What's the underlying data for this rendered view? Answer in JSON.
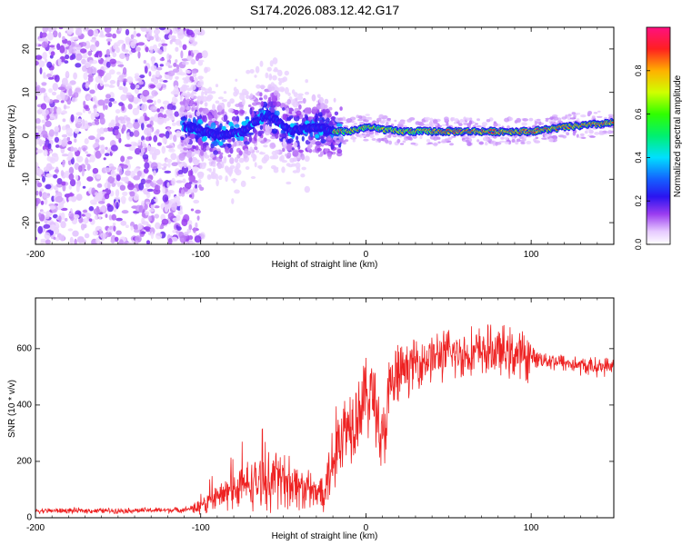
{
  "title": "S174.2026.083.12.42.G17",
  "chart_data": [
    {
      "type": "heatmap",
      "xlabel": "Height of straight line (km)",
      "ylabel": "Frequency (Hz)",
      "xlim": [
        -200,
        150
      ],
      "ylim": [
        -25,
        25
      ],
      "xticks": [
        -200,
        -100,
        0,
        100
      ],
      "yticks": [
        -20,
        -10,
        0,
        10,
        20
      ],
      "colorbar": {
        "label": "Normalized spectral amplitude",
        "range": [
          0,
          1
        ],
        "ticks": [
          0.0,
          0.2,
          0.4,
          0.6,
          0.8
        ]
      },
      "ridge": {
        "description": "dominant frequency track",
        "x": [
          -105,
          -90,
          -75,
          -60,
          -45,
          -30,
          -20,
          -10,
          0,
          20,
          40,
          60,
          80,
          100,
          120,
          150
        ],
        "freq": [
          2,
          0,
          1,
          5,
          1,
          2,
          1,
          1,
          2,
          1,
          1,
          1,
          1,
          1,
          2,
          3
        ]
      }
    },
    {
      "type": "line",
      "xlabel": "Height of straight line (km)",
      "ylabel": "SNR (10 * v/v)",
      "xlim": [
        -200,
        150
      ],
      "ylim": [
        0,
        780
      ],
      "xticks": [
        -200,
        -100,
        0,
        100
      ],
      "yticks": [
        0,
        200,
        400,
        600
      ],
      "color": "#ee2222",
      "series": [
        {
          "name": "SNR",
          "x": [
            -200,
            -150,
            -110,
            -100,
            -90,
            -80,
            -70,
            -60,
            -50,
            -40,
            -30,
            -25,
            -20,
            -15,
            -10,
            -5,
            0,
            5,
            10,
            15,
            20,
            30,
            40,
            50,
            60,
            70,
            80,
            90,
            100,
            110,
            120,
            130,
            140,
            150
          ],
          "y": [
            25,
            25,
            28,
            40,
            70,
            100,
            120,
            130,
            140,
            110,
            80,
            120,
            200,
            300,
            340,
            380,
            430,
            440,
            250,
            460,
            510,
            550,
            570,
            580,
            580,
            590,
            590,
            580,
            570,
            560,
            550,
            540,
            535,
            540
          ]
        }
      ]
    }
  ]
}
